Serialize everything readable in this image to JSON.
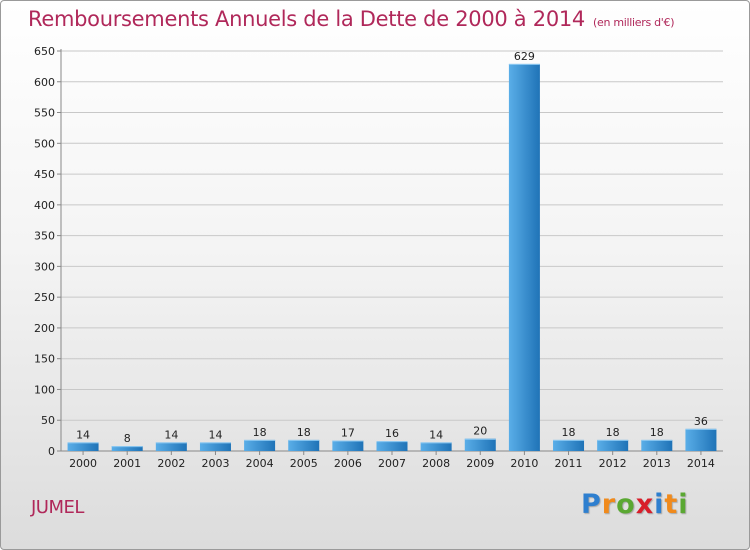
{
  "title": "Remboursements Annuels de la Dette de 2000 à 2014",
  "subtitle": "(en milliers d'€)",
  "commune": "JUMEL",
  "logo": {
    "letters": [
      "P",
      "r",
      "o",
      "x",
      "i",
      "t",
      "i"
    ],
    "colors": [
      "#2e7fcf",
      "#f08a1c",
      "#5aa832",
      "#d81e2a",
      "#2e7fcf",
      "#f08a1c",
      "#5aa832"
    ]
  },
  "colors": {
    "title": "#b0285a",
    "bar_light": "#5aaee8",
    "bar_dark": "#1f73b7",
    "grid": "#c8c8c8"
  },
  "chart_data": {
    "type": "bar",
    "title": "Remboursements Annuels de la Dette de 2000 à 2014",
    "ylabel": "(en milliers d'€)",
    "xlabel": "",
    "categories": [
      "2000",
      "2001",
      "2002",
      "2003",
      "2004",
      "2005",
      "2006",
      "2007",
      "2008",
      "2009",
      "2010",
      "2011",
      "2012",
      "2013",
      "2014"
    ],
    "values": [
      14,
      8,
      14,
      14,
      18,
      18,
      17,
      16,
      14,
      20,
      629,
      18,
      18,
      18,
      36
    ],
    "ylim": [
      0,
      650
    ],
    "yticks": [
      0,
      50,
      100,
      150,
      200,
      250,
      300,
      350,
      400,
      450,
      500,
      550,
      600,
      650
    ],
    "grid": true,
    "legend": "none"
  }
}
